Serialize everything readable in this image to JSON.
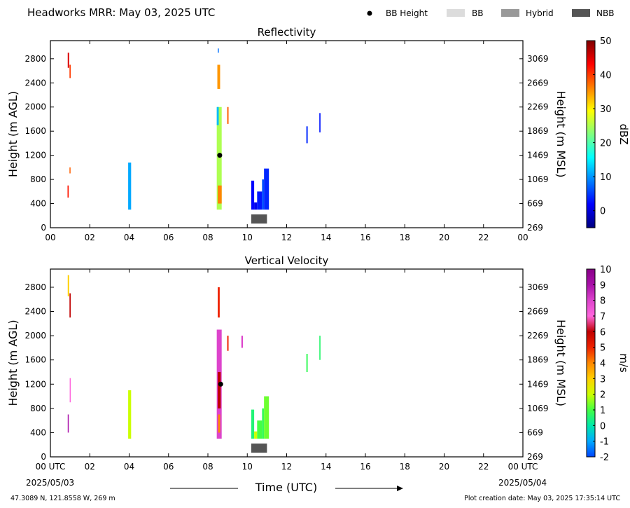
{
  "header": {
    "title": "Headworks MRR:  May 03, 2025 UTC",
    "legend": [
      {
        "label": "BB Height",
        "kind": "dot",
        "color": "#000000"
      },
      {
        "label": "BB",
        "kind": "swatch",
        "color": "#dcdcdc"
      },
      {
        "label": "Hybrid",
        "kind": "swatch",
        "color": "#999999"
      },
      {
        "label": "NBB",
        "kind": "swatch",
        "color": "#555555"
      }
    ]
  },
  "footer": {
    "xlabel": "Time (UTC)",
    "start_date": "2025/05/03",
    "end_date": "2025/05/04",
    "location": "47.3089 N, 121.8558 W, 269 m",
    "created": "Plot creation date: May 03, 2025 17:35:14 UTC"
  },
  "chart_data": [
    {
      "type": "heatmap",
      "title": "Reflectivity",
      "ylabel": "Height (m AGL)",
      "ylabel_right": "Height (m MSL)",
      "xlim": [
        0,
        24
      ],
      "ylim": [
        0,
        3100
      ],
      "xticks": [
        "00",
        "02",
        "04",
        "06",
        "08",
        "10",
        "12",
        "14",
        "16",
        "18",
        "20",
        "22",
        "00"
      ],
      "yticks": [
        0,
        400,
        800,
        1200,
        1600,
        2000,
        2400,
        2800
      ],
      "yticks_right": [
        "269",
        "669",
        "1069",
        "1469",
        "1869",
        "2269",
        "2669",
        "3069"
      ],
      "colorbar": {
        "label": "dBZ",
        "min": -5,
        "max": 50,
        "ticks": [
          0,
          10,
          20,
          30,
          40,
          50
        ],
        "colors": [
          "#00007f",
          "#0000ff",
          "#007fff",
          "#00ffff",
          "#7fff7f",
          "#ffff00",
          "#ff7f00",
          "#ff0000",
          "#7f0000"
        ]
      },
      "bb_height": [
        {
          "t": 8.6,
          "h": 1200
        }
      ],
      "bb_type": [
        {
          "t0": 10.2,
          "t1": 11.0,
          "label": "NBB"
        }
      ],
      "echoes": [
        {
          "t0": 0.88,
          "t1": 0.95,
          "h0": 2650,
          "h1": 2900,
          "v": 45
        },
        {
          "t0": 0.97,
          "t1": 1.03,
          "h0": 2480,
          "h1": 2700,
          "v": 40
        },
        {
          "t0": 0.87,
          "t1": 0.93,
          "h0": 500,
          "h1": 700,
          "v": 42
        },
        {
          "t0": 0.97,
          "t1": 1.02,
          "h0": 900,
          "h1": 1000,
          "v": 38
        },
        {
          "t0": 3.95,
          "t1": 4.1,
          "h0": 300,
          "h1": 1080,
          "v": 11
        },
        {
          "t0": 8.45,
          "t1": 8.7,
          "h0": 300,
          "h1": 2000,
          "v": 25
        },
        {
          "t0": 8.5,
          "t1": 8.7,
          "h0": 400,
          "h1": 700,
          "v": 36
        },
        {
          "t0": 8.45,
          "t1": 8.55,
          "h0": 1700,
          "h1": 2000,
          "v": 12
        },
        {
          "t0": 8.48,
          "t1": 8.62,
          "h0": 2300,
          "h1": 2700,
          "v": 35
        },
        {
          "t0": 8.5,
          "t1": 8.55,
          "h0": 2900,
          "h1": 2970,
          "v": 8
        },
        {
          "t0": 8.98,
          "t1": 9.05,
          "h0": 1720,
          "h1": 2000,
          "v": 38
        },
        {
          "t0": 10.2,
          "t1": 10.35,
          "h0": 300,
          "h1": 780,
          "v": 2
        },
        {
          "t0": 10.35,
          "t1": 10.5,
          "h0": 300,
          "h1": 420,
          "v": 1
        },
        {
          "t0": 10.5,
          "t1": 10.75,
          "h0": 300,
          "h1": 600,
          "v": 3
        },
        {
          "t0": 10.75,
          "t1": 10.85,
          "h0": 300,
          "h1": 800,
          "v": 6
        },
        {
          "t0": 10.85,
          "t1": 11.1,
          "h0": 300,
          "h1": 980,
          "v": 4
        },
        {
          "t0": 13.0,
          "t1": 13.07,
          "h0": 1400,
          "h1": 1680,
          "v": 4
        },
        {
          "t0": 13.66,
          "t1": 13.72,
          "h0": 1580,
          "h1": 1900,
          "v": 3
        }
      ]
    },
    {
      "type": "heatmap",
      "title": "Vertical Velocity",
      "ylabel": "Height (m AGL)",
      "ylabel_right": "Height (m MSL)",
      "xlim": [
        0,
        24
      ],
      "ylim": [
        0,
        3100
      ],
      "xticks": [
        "00 UTC",
        "02",
        "04",
        "06",
        "08",
        "10",
        "12",
        "14",
        "16",
        "18",
        "20",
        "22",
        "00 UTC"
      ],
      "yticks": [
        0,
        400,
        800,
        1200,
        1600,
        2000,
        2400,
        2800
      ],
      "yticks_right": [
        "269",
        "669",
        "1069",
        "1469",
        "1869",
        "2269",
        "2669",
        "3069"
      ],
      "colorbar": {
        "label": "m/s",
        "min": -2,
        "max": 10,
        "ticks": [
          -2,
          -1,
          0,
          1,
          2,
          3,
          4,
          5,
          6,
          7,
          8,
          9,
          10
        ],
        "colors": [
          "#0044ff",
          "#00aaff",
          "#00e8aa",
          "#44ff44",
          "#ccff00",
          "#ffd000",
          "#ff8800",
          "#ee2200",
          "#c00000",
          "#ff66dd",
          "#dd44cc",
          "#aa11aa",
          "#880088"
        ]
      },
      "bb_height": [
        {
          "t": 8.65,
          "h": 1200
        }
      ],
      "bb_type": [
        {
          "t0": 10.2,
          "t1": 11.0,
          "label": "NBB"
        }
      ],
      "echoes": [
        {
          "t0": 0.88,
          "t1": 0.95,
          "h0": 2650,
          "h1": 3000,
          "v": 3
        },
        {
          "t0": 0.97,
          "t1": 1.03,
          "h0": 2300,
          "h1": 2700,
          "v": 6
        },
        {
          "t0": 0.88,
          "t1": 0.93,
          "h0": 400,
          "h1": 700,
          "v": 9
        },
        {
          "t0": 0.98,
          "t1": 1.02,
          "h0": 900,
          "h1": 1300,
          "v": 7
        },
        {
          "t0": 3.95,
          "t1": 4.1,
          "h0": 300,
          "h1": 1100,
          "v": 2
        },
        {
          "t0": 8.45,
          "t1": 8.7,
          "h0": 300,
          "h1": 2100,
          "v": 8
        },
        {
          "t0": 8.5,
          "t1": 8.65,
          "h0": 800,
          "h1": 1400,
          "v": 6
        },
        {
          "t0": 8.52,
          "t1": 8.62,
          "h0": 400,
          "h1": 700,
          "v": 4
        },
        {
          "t0": 8.5,
          "t1": 8.6,
          "h0": 2300,
          "h1": 2800,
          "v": 5
        },
        {
          "t0": 8.98,
          "t1": 9.05,
          "h0": 1750,
          "h1": 2000,
          "v": 5
        },
        {
          "t0": 9.7,
          "t1": 9.78,
          "h0": 1800,
          "h1": 2000,
          "v": 8
        },
        {
          "t0": 10.2,
          "t1": 10.35,
          "h0": 300,
          "h1": 780,
          "v": 0.5
        },
        {
          "t0": 10.35,
          "t1": 10.5,
          "h0": 300,
          "h1": 420,
          "v": 2
        },
        {
          "t0": 10.5,
          "t1": 10.75,
          "h0": 300,
          "h1": 600,
          "v": 1
        },
        {
          "t0": 10.75,
          "t1": 10.85,
          "h0": 300,
          "h1": 800,
          "v": 0.8
        },
        {
          "t0": 10.85,
          "t1": 11.1,
          "h0": 300,
          "h1": 1000,
          "v": 1.3
        },
        {
          "t0": 13.0,
          "t1": 13.07,
          "h0": 1400,
          "h1": 1700,
          "v": 0.8
        },
        {
          "t0": 13.66,
          "t1": 13.72,
          "h0": 1600,
          "h1": 2000,
          "v": 0.6
        }
      ]
    }
  ]
}
